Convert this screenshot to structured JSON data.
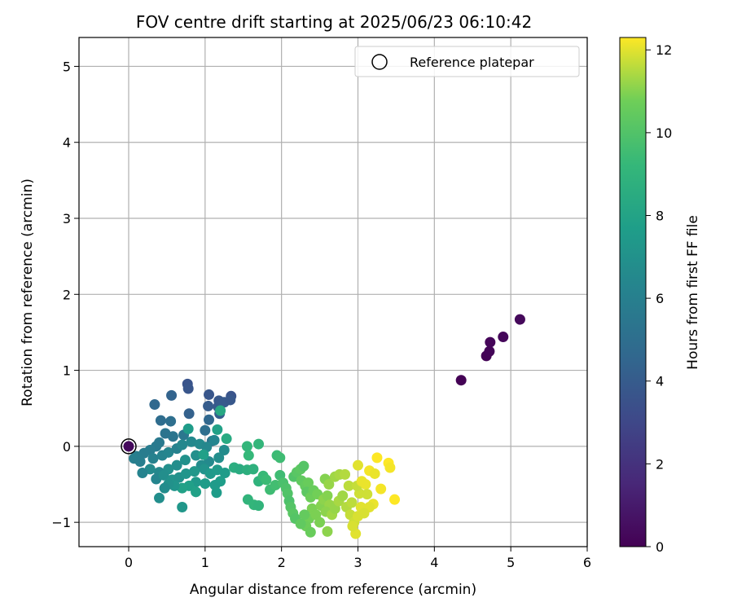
{
  "chart_data": {
    "type": "scatter",
    "title": "FOV centre drift starting at 2025/06/23 06:10:42",
    "xlabel": "Angular distance from reference (arcmin)",
    "ylabel": "Rotation from reference (arcmin)",
    "xlim": [
      -0.65,
      6.0
    ],
    "ylim": [
      -1.32,
      5.38
    ],
    "xticks": [
      0,
      1,
      2,
      3,
      4,
      5,
      6
    ],
    "yticks": [
      -1,
      0,
      1,
      2,
      3,
      4,
      5
    ],
    "grid": true,
    "legend": {
      "position": "top-right",
      "entries": [
        "Reference platepar"
      ]
    },
    "reference_point": {
      "x": 0,
      "y": 0
    },
    "colorbar": {
      "label": "Hours from first FF file",
      "range": [
        0,
        12.3
      ],
      "ticks": [
        0,
        2,
        4,
        6,
        8,
        10,
        12
      ],
      "colormap": "viridis"
    },
    "points": [
      [
        4.35,
        0.87,
        0.05
      ],
      [
        4.68,
        1.19,
        0.1
      ],
      [
        4.72,
        1.25,
        0.15
      ],
      [
        4.73,
        1.37,
        0.2
      ],
      [
        4.9,
        1.44,
        0.25
      ],
      [
        5.12,
        1.67,
        0.3
      ],
      [
        0.0,
        0.0,
        0.35
      ],
      [
        0.77,
        0.82,
        3.6
      ],
      [
        0.78,
        0.76,
        3.7
      ],
      [
        1.05,
        0.68,
        3.7
      ],
      [
        1.18,
        0.6,
        3.8
      ],
      [
        1.25,
        0.58,
        3.9
      ],
      [
        1.34,
        0.66,
        3.6
      ],
      [
        1.33,
        0.61,
        3.8
      ],
      [
        1.17,
        0.52,
        3.9
      ],
      [
        1.04,
        0.53,
        4.0
      ],
      [
        1.19,
        0.43,
        4.1
      ],
      [
        0.56,
        0.67,
        4.4
      ],
      [
        0.34,
        0.55,
        4.7
      ],
      [
        0.79,
        0.43,
        4.3
      ],
      [
        1.05,
        0.35,
        4.6
      ],
      [
        0.42,
        0.34,
        4.9
      ],
      [
        0.55,
        0.33,
        5.0
      ],
      [
        1.0,
        0.21,
        5.0
      ],
      [
        1.09,
        0.07,
        5.2
      ],
      [
        0.48,
        0.17,
        5.3
      ],
      [
        0.58,
        0.13,
        5.4
      ],
      [
        0.72,
        0.15,
        5.5
      ],
      [
        0.4,
        0.05,
        5.6
      ],
      [
        0.36,
        0.0,
        5.7
      ],
      [
        0.28,
        -0.05,
        5.8
      ],
      [
        0.2,
        -0.09,
        5.8
      ],
      [
        0.1,
        -0.13,
        5.9
      ],
      [
        0.07,
        -0.16,
        6.0
      ],
      [
        0.15,
        -0.2,
        5.9
      ],
      [
        0.32,
        -0.16,
        6.1
      ],
      [
        0.44,
        -0.12,
        6.2
      ],
      [
        0.52,
        -0.08,
        6.3
      ],
      [
        0.63,
        -0.03,
        6.1
      ],
      [
        0.7,
        0.02,
        6.4
      ],
      [
        0.82,
        0.06,
        6.5
      ],
      [
        0.93,
        0.03,
        6.6
      ],
      [
        1.02,
        -0.01,
        6.4
      ],
      [
        1.12,
        0.08,
        6.3
      ],
      [
        1.25,
        -0.05,
        6.7
      ],
      [
        1.18,
        -0.15,
        6.8
      ],
      [
        1.05,
        -0.2,
        6.6
      ],
      [
        0.95,
        -0.25,
        6.7
      ],
      [
        0.88,
        -0.12,
        6.9
      ],
      [
        0.74,
        -0.18,
        7.0
      ],
      [
        0.63,
        -0.25,
        6.8
      ],
      [
        0.52,
        -0.3,
        6.9
      ],
      [
        0.4,
        -0.34,
        6.5
      ],
      [
        0.28,
        -0.3,
        6.6
      ],
      [
        0.18,
        -0.35,
        6.2
      ],
      [
        0.36,
        -0.43,
        6.3
      ],
      [
        0.46,
        -0.38,
        6.8
      ],
      [
        0.57,
        -0.44,
        7.1
      ],
      [
        0.66,
        -0.41,
        7.0
      ],
      [
        0.75,
        -0.36,
        7.2
      ],
      [
        0.86,
        -0.33,
        7.3
      ],
      [
        0.99,
        -0.3,
        7.1
      ],
      [
        1.07,
        -0.36,
        7.4
      ],
      [
        1.16,
        -0.31,
        7.5
      ],
      [
        1.26,
        -0.35,
        7.6
      ],
      [
        1.2,
        -0.46,
        7.7
      ],
      [
        1.13,
        -0.51,
        7.5
      ],
      [
        1.0,
        -0.49,
        7.6
      ],
      [
        0.88,
        -0.47,
        7.4
      ],
      [
        0.79,
        -0.52,
        7.8
      ],
      [
        0.7,
        -0.55,
        7.9
      ],
      [
        0.6,
        -0.52,
        7.2
      ],
      [
        0.52,
        -0.5,
        7.0
      ],
      [
        0.47,
        -0.55,
        6.7
      ],
      [
        0.4,
        -0.68,
        6.8
      ],
      [
        0.7,
        -0.8,
        7.3
      ],
      [
        0.88,
        -0.6,
        7.9
      ],
      [
        1.15,
        -0.61,
        7.6
      ],
      [
        0.98,
        -0.11,
        7.8
      ],
      [
        0.78,
        0.23,
        7.6
      ],
      [
        1.16,
        0.22,
        7.9
      ],
      [
        1.2,
        0.47,
        8.3
      ],
      [
        1.28,
        0.1,
        8.4
      ],
      [
        1.38,
        -0.28,
        8.6
      ],
      [
        1.45,
        -0.3,
        8.5
      ],
      [
        1.55,
        -0.31,
        8.7
      ],
      [
        1.63,
        -0.3,
        8.8
      ],
      [
        1.7,
        -0.46,
        8.9
      ],
      [
        1.56,
        -0.7,
        9.0
      ],
      [
        1.64,
        -0.77,
        9.1
      ],
      [
        1.7,
        -0.78,
        9.0
      ],
      [
        1.55,
        0.0,
        9.1
      ],
      [
        1.57,
        -0.12,
        9.2
      ],
      [
        1.7,
        0.03,
        9.1
      ],
      [
        1.76,
        -0.39,
        9.3
      ],
      [
        1.8,
        -0.44,
        9.4
      ],
      [
        1.85,
        -0.57,
        9.5
      ],
      [
        1.92,
        -0.51,
        9.6
      ],
      [
        1.98,
        -0.38,
        9.5
      ],
      [
        1.94,
        -0.12,
        9.4
      ],
      [
        1.98,
        -0.15,
        9.5
      ],
      [
        2.02,
        -0.48,
        9.8
      ],
      [
        2.06,
        -0.55,
        9.9
      ],
      [
        2.08,
        -0.62,
        10.0
      ],
      [
        2.1,
        -0.72,
        9.9
      ],
      [
        2.12,
        -0.8,
        10.1
      ],
      [
        2.15,
        -0.88,
        10.2
      ],
      [
        2.18,
        -0.95,
        10.1
      ],
      [
        2.16,
        -0.4,
        10.0
      ],
      [
        2.2,
        -0.34,
        10.2
      ],
      [
        2.25,
        -0.3,
        10.3
      ],
      [
        2.29,
        -0.26,
        10.1
      ],
      [
        2.26,
        -0.45,
        10.4
      ],
      [
        2.31,
        -0.52,
        10.5
      ],
      [
        2.35,
        -0.48,
        10.6
      ],
      [
        2.33,
        -0.6,
        10.3
      ],
      [
        2.38,
        -0.67,
        10.7
      ],
      [
        2.42,
        -0.58,
        10.6
      ],
      [
        2.47,
        -0.63,
        10.8
      ],
      [
        2.4,
        -0.82,
        10.9
      ],
      [
        2.36,
        -0.95,
        10.8
      ],
      [
        2.32,
        -1.05,
        10.7
      ],
      [
        2.3,
        -0.9,
        10.5
      ],
      [
        2.38,
        -1.13,
        10.6
      ],
      [
        2.25,
        -1.02,
        10.4
      ],
      [
        2.45,
        -0.9,
        10.9
      ],
      [
        2.52,
        -0.78,
        11.0
      ],
      [
        2.55,
        -0.7,
        11.1
      ],
      [
        2.6,
        -0.65,
        11.0
      ],
      [
        2.63,
        -0.77,
        11.2
      ],
      [
        2.58,
        -0.86,
        11.1
      ],
      [
        2.66,
        -0.9,
        11.3
      ],
      [
        2.7,
        -0.82,
        11.2
      ],
      [
        2.75,
        -0.72,
        11.4
      ],
      [
        2.8,
        -0.65,
        11.3
      ],
      [
        2.57,
        -0.43,
        11.0
      ],
      [
        2.62,
        -0.5,
        11.2
      ],
      [
        2.7,
        -0.4,
        11.3
      ],
      [
        2.76,
        -0.37,
        11.4
      ],
      [
        2.83,
        -0.37,
        11.5
      ],
      [
        2.88,
        -0.52,
        11.6
      ],
      [
        2.85,
        -0.8,
        11.5
      ],
      [
        2.92,
        -0.74,
        11.6
      ],
      [
        2.9,
        -0.9,
        11.7
      ],
      [
        2.95,
        -1.0,
        11.8
      ],
      [
        2.97,
        -1.15,
        12.0
      ],
      [
        2.93,
        -1.05,
        11.9
      ],
      [
        3.0,
        -0.92,
        11.9
      ],
      [
        3.04,
        -0.8,
        12.0
      ],
      [
        3.02,
        -0.62,
        11.8
      ],
      [
        2.99,
        -0.52,
        11.7
      ],
      [
        3.05,
        -0.46,
        12.1
      ],
      [
        3.0,
        -0.25,
        12.0
      ],
      [
        3.1,
        -0.5,
        12.1
      ],
      [
        3.15,
        -0.32,
        12.2
      ],
      [
        3.22,
        -0.36,
        12.1
      ],
      [
        3.25,
        -0.15,
        12.3
      ],
      [
        3.3,
        -0.56,
        12.2
      ],
      [
        3.2,
        -0.76,
        12.1
      ],
      [
        3.15,
        -0.8,
        12.0
      ],
      [
        3.08,
        -0.88,
        11.9
      ],
      [
        3.4,
        -0.22,
        12.3
      ],
      [
        3.42,
        -0.28,
        12.2
      ],
      [
        3.48,
        -0.7,
        12.3
      ],
      [
        3.12,
        -0.63,
        11.8
      ],
      [
        2.5,
        -1.0,
        10.9
      ],
      [
        2.6,
        -1.12,
        11.1
      ]
    ]
  }
}
